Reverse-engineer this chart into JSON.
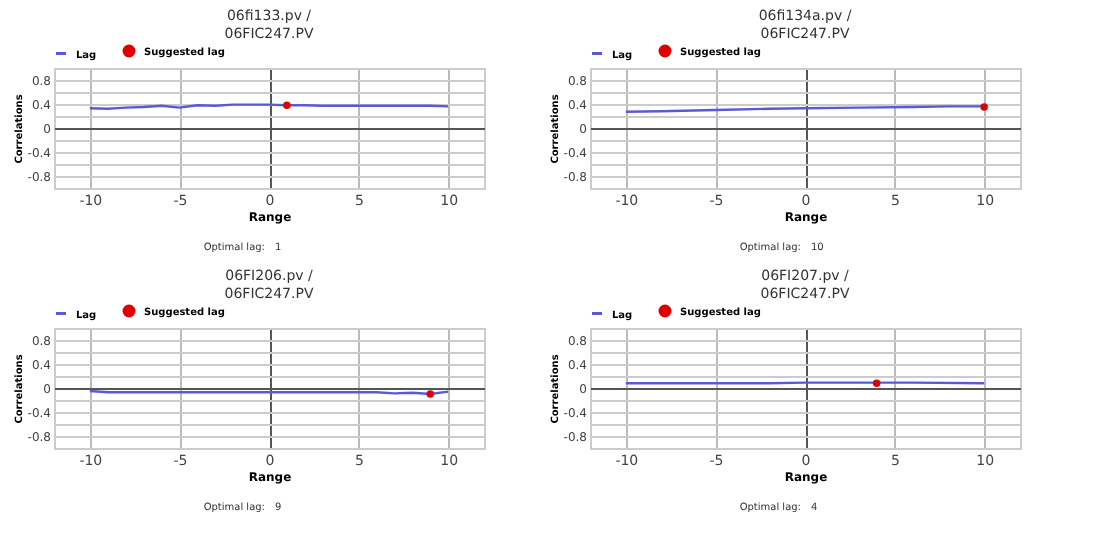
{
  "chart_data": [
    {
      "type": "line",
      "title": "06fi133.pv /\n06FIC247.PV",
      "xlabel": "Range",
      "ylabel": "Correlations",
      "xlim": [
        -12,
        12
      ],
      "xticks": [
        -10,
        -5,
        0,
        5,
        10
      ],
      "ylim": [
        -1,
        1
      ],
      "yticks": [
        {
          "value": -1,
          "label": null
        },
        -0.8,
        {
          "value": -0.6,
          "label": null
        },
        -0.4,
        {
          "value": -0.2,
          "label": null
        },
        0,
        {
          "value": 0.2,
          "label": null
        },
        0.4,
        {
          "value": 0.6,
          "label": null
        },
        0.8,
        {
          "value": 1,
          "label": null
        }
      ],
      "grid": true,
      "legend": "top left",
      "series": [
        {
          "name": "Lag",
          "color": "#5a5ad8",
          "x": [
            -10,
            -9,
            -8,
            -7,
            -6,
            -5,
            -4,
            -3,
            -2,
            -1,
            0,
            1,
            2,
            3,
            4,
            5,
            6,
            7,
            8,
            9,
            10
          ],
          "values": [
            0.33,
            0.32,
            0.34,
            0.35,
            0.37,
            0.34,
            0.38,
            0.37,
            0.39,
            0.39,
            0.39,
            0.38,
            0.38,
            0.37,
            0.37,
            0.37,
            0.37,
            0.37,
            0.37,
            0.37,
            0.36
          ]
        },
        {
          "name": "Suggested lag",
          "type": "scatter",
          "color": "#e00000",
          "x": [
            1
          ],
          "values": [
            0.38
          ]
        }
      ],
      "annotations": [
        "Optimal lag:",
        "1"
      ]
    },
    {
      "type": "line",
      "title": "06fi134a.pv /\n06FIC247.PV",
      "xlabel": "Range",
      "ylabel": "Correlations",
      "xlim": [
        -12,
        12
      ],
      "xticks": [
        -10,
        -5,
        0,
        5,
        10
      ],
      "ylim": [
        -1,
        1
      ],
      "yticks": [
        {
          "value": -1,
          "label": null
        },
        -0.8,
        {
          "value": -0.6,
          "label": null
        },
        -0.4,
        {
          "value": -0.2,
          "label": null
        },
        0,
        {
          "value": 0.2,
          "label": null
        },
        0.4,
        {
          "value": 0.6,
          "label": null
        },
        0.8,
        {
          "value": 1,
          "label": null
        }
      ],
      "grid": true,
      "legend": "top left",
      "series": [
        {
          "name": "Lag",
          "color": "#5a5ad8",
          "x": [
            -10,
            -8,
            -5,
            -2,
            0,
            3,
            6,
            8,
            10
          ],
          "values": [
            0.27,
            0.28,
            0.3,
            0.32,
            0.33,
            0.34,
            0.35,
            0.36,
            0.36
          ]
        },
        {
          "name": "Suggested lag",
          "type": "scatter",
          "color": "#e00000",
          "x": [
            10
          ],
          "values": [
            0.35
          ]
        }
      ],
      "annotations": [
        "Optimal lag:",
        "10"
      ]
    },
    {
      "type": "line",
      "title": "06FI206.pv /\n06FIC247.PV",
      "xlabel": "Range",
      "ylabel": "Correlations",
      "xlim": [
        -12,
        12
      ],
      "xticks": [
        -10,
        -5,
        0,
        5,
        10
      ],
      "ylim": [
        -1,
        1
      ],
      "yticks": [
        {
          "value": -1,
          "label": null
        },
        -0.8,
        {
          "value": -0.6,
          "label": null
        },
        -0.4,
        {
          "value": -0.2,
          "label": null
        },
        0,
        {
          "value": 0.2,
          "label": null
        },
        0.4,
        {
          "value": 0.6,
          "label": null
        },
        0.8,
        {
          "value": 1,
          "label": null
        }
      ],
      "grid": true,
      "legend": "top left",
      "series": [
        {
          "name": "Lag",
          "color": "#5a5ad8",
          "x": [
            -10,
            -9,
            -8,
            -6,
            -4,
            -2,
            0,
            2,
            4,
            6,
            7,
            8,
            9,
            10
          ],
          "values": [
            -0.05,
            -0.07,
            -0.07,
            -0.07,
            -0.07,
            -0.07,
            -0.07,
            -0.07,
            -0.07,
            -0.07,
            -0.09,
            -0.08,
            -0.1,
            -0.06
          ]
        },
        {
          "name": "Suggested lag",
          "type": "scatter",
          "color": "#e00000",
          "x": [
            9
          ],
          "values": [
            -0.1
          ]
        }
      ],
      "annotations": [
        "Optimal lag:",
        "9"
      ]
    },
    {
      "type": "line",
      "title": "06FI207.pv /\n06FIC247.PV",
      "xlabel": "Range",
      "ylabel": "Correlations",
      "xlim": [
        -12,
        12
      ],
      "xticks": [
        -10,
        -5,
        0,
        5,
        10
      ],
      "ylim": [
        -1,
        1
      ],
      "yticks": [
        {
          "value": -1,
          "label": null
        },
        -0.8,
        {
          "value": -0.6,
          "label": null
        },
        -0.4,
        {
          "value": -0.2,
          "label": null
        },
        0,
        {
          "value": 0.2,
          "label": null
        },
        0.4,
        {
          "value": 0.6,
          "label": null
        },
        0.8,
        {
          "value": 1,
          "label": null
        }
      ],
      "grid": true,
      "legend": "top left",
      "series": [
        {
          "name": "Lag",
          "color": "#5a5ad8",
          "x": [
            -10,
            -6,
            -2,
            0,
            2,
            4,
            6,
            10
          ],
          "values": [
            0.08,
            0.08,
            0.08,
            0.09,
            0.09,
            0.09,
            0.09,
            0.08
          ]
        },
        {
          "name": "Suggested lag",
          "type": "scatter",
          "color": "#e00000",
          "x": [
            4
          ],
          "values": [
            0.08
          ]
        }
      ],
      "annotations": [
        "Optimal lag:",
        "4"
      ]
    }
  ]
}
